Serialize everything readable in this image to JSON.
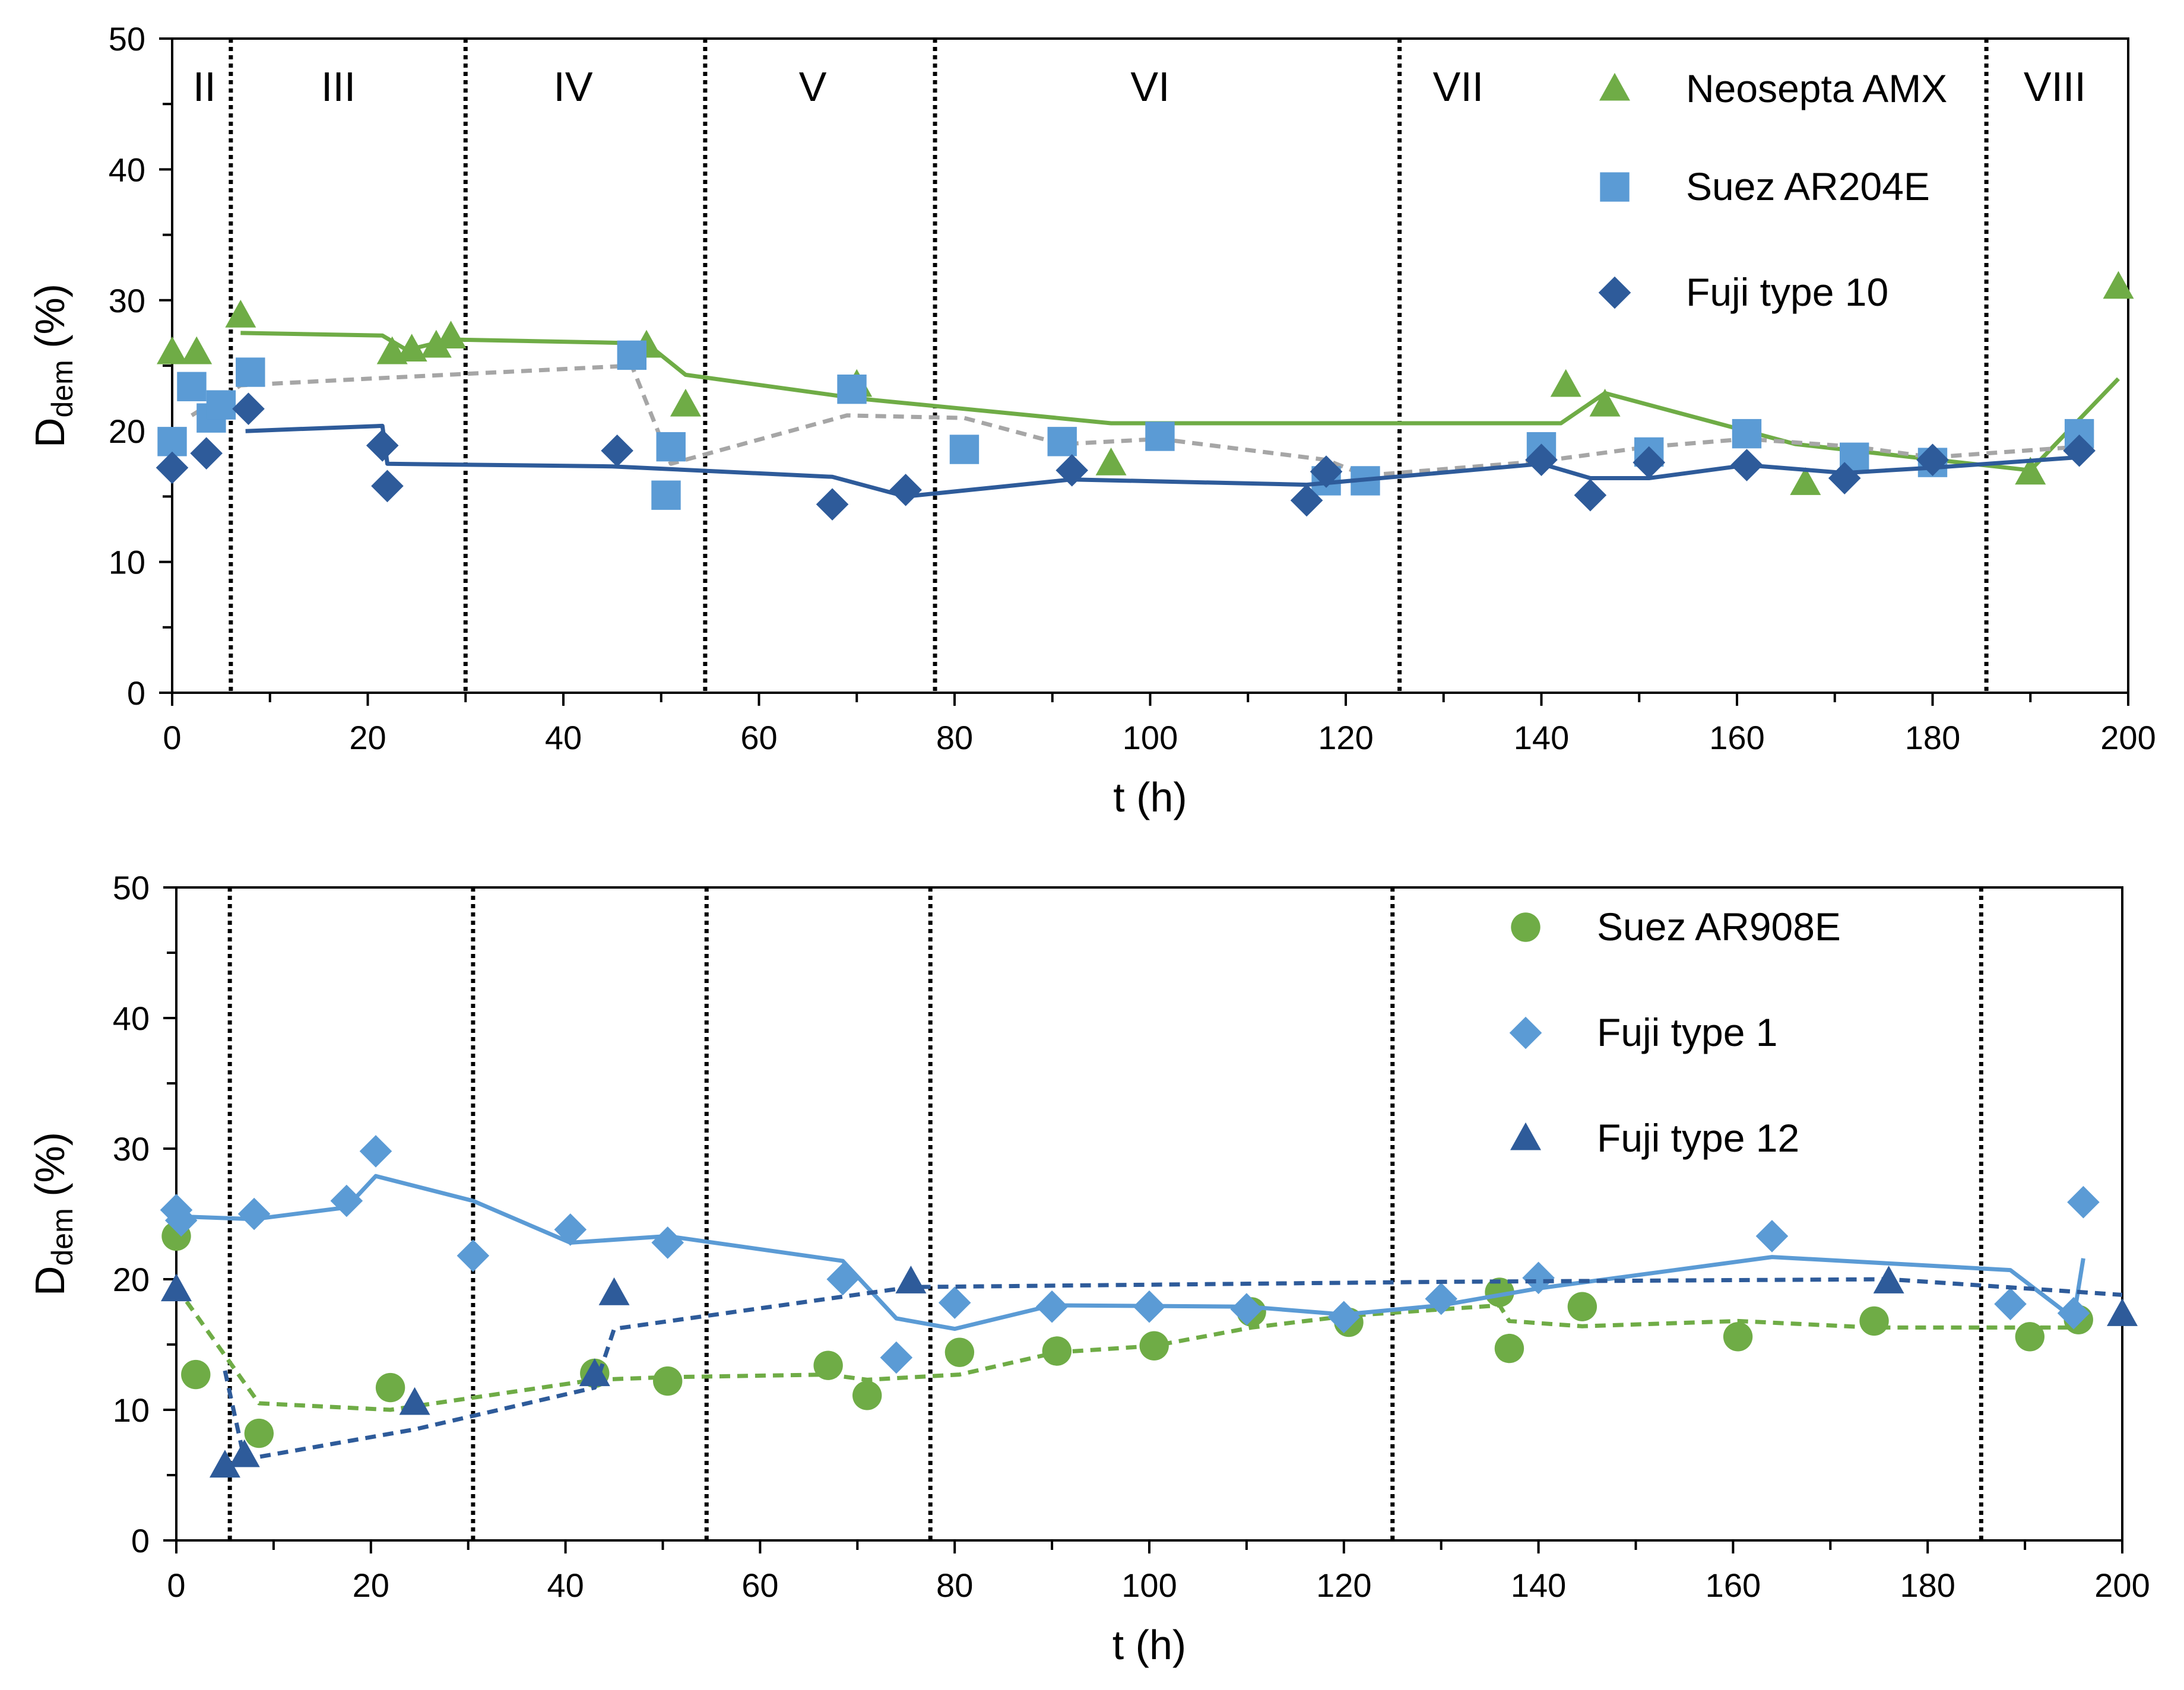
{
  "chart_data": [
    {
      "type": "scatter",
      "xlabel": "t (h)",
      "ylabel_main": "D",
      "ylabel_sub": "dem",
      "ylabel_unit": " (%)",
      "xlim": [
        0,
        200
      ],
      "ylim": [
        0,
        50
      ],
      "xticks": [
        0,
        20,
        40,
        60,
        80,
        100,
        120,
        140,
        160,
        180,
        200
      ],
      "yticks": [
        0,
        10,
        20,
        30,
        40,
        50
      ],
      "period_boundaries": [
        6,
        30,
        54.5,
        78,
        125.5,
        185.5
      ],
      "period_labels": [
        {
          "text": "II",
          "x": 3.3
        },
        {
          "text": "III",
          "x": 17
        },
        {
          "text": "IV",
          "x": 41
        },
        {
          "text": "V",
          "x": 65.5
        },
        {
          "text": "VI",
          "x": 100
        },
        {
          "text": "VII",
          "x": 131.5
        },
        {
          "text": "VIII",
          "x": 192.5
        }
      ],
      "series": [
        {
          "name": "Neosepta AMX",
          "marker": "triangle",
          "color": "#6fac46",
          "line_style": "solid",
          "points": [
            [
              0,
              26
            ],
            [
              2.5,
              26
            ],
            [
              7,
              28.8
            ],
            [
              22.5,
              26
            ],
            [
              24.5,
              26.2
            ],
            [
              27,
              26.5
            ],
            [
              28.5,
              27.2
            ],
            [
              48.5,
              26.5
            ],
            [
              52.5,
              22
            ],
            [
              70,
              23.5
            ],
            [
              96,
              17.5
            ],
            [
              142.5,
              23.5
            ],
            [
              146.5,
              22
            ],
            [
              167,
              16
            ],
            [
              190,
              16.8
            ],
            [
              199,
              31
            ]
          ],
          "fit": [
            [
              7,
              27.5
            ],
            [
              21.5,
              27.3
            ],
            [
              24,
              26.2
            ],
            [
              28.5,
              27
            ],
            [
              48.5,
              26.7
            ],
            [
              52.5,
              24.3
            ],
            [
              70,
              22.5
            ],
            [
              96,
              20.6
            ],
            [
              142,
              20.6
            ],
            [
              146.5,
              22.9
            ],
            [
              166,
              19
            ],
            [
              190,
              17
            ],
            [
              199,
              24
            ]
          ]
        },
        {
          "name": "Suez AR204E",
          "marker": "square",
          "color": "#5b9bd5",
          "line_style": "dashed",
          "points": [
            [
              0,
              19.2
            ],
            [
              2,
              23.4
            ],
            [
              4,
              21
            ],
            [
              5,
              22
            ],
            [
              8,
              24.5
            ],
            [
              47,
              25.8
            ],
            [
              51,
              18.8
            ],
            [
              50.5,
              15.1
            ],
            [
              69.5,
              23.2
            ],
            [
              81,
              18.6
            ],
            [
              91,
              19.2
            ],
            [
              101,
              19.6
            ],
            [
              118,
              16.2
            ],
            [
              122,
              16.2
            ],
            [
              140,
              18.8
            ],
            [
              151,
              18.4
            ],
            [
              161,
              19.8
            ],
            [
              172,
              18
            ],
            [
              180,
              17.6
            ],
            [
              195,
              19.8
            ]
          ],
          "fit": [
            [
              2,
              21.2
            ],
            [
              7,
              23.5
            ],
            [
              20,
              24
            ],
            [
              47,
              25
            ],
            [
              51,
              17.5
            ],
            [
              69,
              21.2
            ],
            [
              81,
              21
            ],
            [
              91,
              19
            ],
            [
              101,
              19.4
            ],
            [
              118,
              17.8
            ],
            [
              122,
              16.6
            ],
            [
              140,
              17.7
            ],
            [
              151,
              18.8
            ],
            [
              161,
              19.4
            ],
            [
              172,
              18.8
            ],
            [
              180,
              18
            ],
            [
              195,
              18.8
            ]
          ]
        },
        {
          "name": "Fuji type 10",
          "marker": "diamond",
          "color": "#2e5b9a",
          "line_style": "solid",
          "points": [
            [
              0,
              17.2
            ],
            [
              3.5,
              18.3
            ],
            [
              7.8,
              21.7
            ],
            [
              21.5,
              18.9
            ],
            [
              22,
              15.8
            ],
            [
              45.5,
              18.5
            ],
            [
              67.5,
              14.4
            ],
            [
              75,
              15.5
            ],
            [
              92,
              17
            ],
            [
              116,
              14.7
            ],
            [
              118,
              16.9
            ],
            [
              140,
              17.8
            ],
            [
              145,
              15.1
            ],
            [
              151,
              17.6
            ],
            [
              161,
              17.4
            ],
            [
              171,
              16.4
            ],
            [
              180,
              17.8
            ],
            [
              195,
              18.5
            ]
          ],
          "fit": [
            [
              7.5,
              20
            ],
            [
              21.5,
              20.4
            ],
            [
              22,
              17.5
            ],
            [
              45,
              17.3
            ],
            [
              67.5,
              16.5
            ],
            [
              75,
              15
            ],
            [
              92,
              16.3
            ],
            [
              116,
              15.9
            ],
            [
              140,
              17.5
            ],
            [
              145,
              16.4
            ],
            [
              151,
              16.4
            ],
            [
              161,
              17.4
            ],
            [
              171,
              16.8
            ],
            [
              180,
              17.2
            ],
            [
              195,
              18
            ]
          ]
        }
      ]
    },
    {
      "type": "scatter",
      "xlabel": "t (h)",
      "ylabel_main": "D",
      "ylabel_sub": "dem",
      "ylabel_unit": " (%)",
      "xlim": [
        0,
        200
      ],
      "ylim": [
        0,
        50
      ],
      "xticks": [
        0,
        20,
        40,
        60,
        80,
        100,
        120,
        140,
        160,
        180,
        200
      ],
      "yticks": [
        0,
        10,
        20,
        30,
        40,
        50
      ],
      "period_boundaries": [
        5.5,
        30.5,
        54.5,
        77.5,
        125,
        185.5
      ],
      "series": [
        {
          "name": "Suez AR908E",
          "marker": "circle",
          "color": "#6fac46",
          "line_style": "dashed",
          "points": [
            [
              0,
              23.3
            ],
            [
              2,
              12.7
            ],
            [
              8.5,
              8.2
            ],
            [
              22,
              11.7
            ],
            [
              43,
              12.8
            ],
            [
              50.5,
              12.2
            ],
            [
              67,
              13.4
            ],
            [
              71,
              11.1
            ],
            [
              80.5,
              14.4
            ],
            [
              90.5,
              14.5
            ],
            [
              100.5,
              14.9
            ],
            [
              110.5,
              17.5
            ],
            [
              120.5,
              16.7
            ],
            [
              136,
              19
            ],
            [
              137,
              14.7
            ],
            [
              144.5,
              17.9
            ],
            [
              160.5,
              15.6
            ],
            [
              174.5,
              16.8
            ],
            [
              190.5,
              15.6
            ],
            [
              195.5,
              16.9
            ]
          ],
          "fit": [
            [
              0,
              19.4
            ],
            [
              8.5,
              10.5
            ],
            [
              22,
              10
            ],
            [
              43,
              12.3
            ],
            [
              50.5,
              12.5
            ],
            [
              67,
              12.7
            ],
            [
              71,
              12.3
            ],
            [
              80.5,
              12.7
            ],
            [
              90.5,
              14.4
            ],
            [
              100.5,
              14.9
            ],
            [
              110.5,
              16.3
            ],
            [
              120.5,
              17.2
            ],
            [
              136,
              18
            ],
            [
              137,
              16.8
            ],
            [
              144.5,
              16.4
            ],
            [
              160.5,
              16.8
            ],
            [
              174.5,
              16.3
            ],
            [
              195.5,
              16.3
            ]
          ]
        },
        {
          "name": "Fuji type 1",
          "marker": "diamond",
          "color": "#5b9bd5",
          "line_style": "solid",
          "points": [
            [
              0,
              25.3
            ],
            [
              0.5,
              24.5
            ],
            [
              8,
              25
            ],
            [
              17.5,
              26
            ],
            [
              20.5,
              29.8
            ],
            [
              30.5,
              21.8
            ],
            [
              40.5,
              23.8
            ],
            [
              50.5,
              22.8
            ],
            [
              68.5,
              20
            ],
            [
              74,
              14
            ],
            [
              80,
              18.2
            ],
            [
              90,
              17.9
            ],
            [
              100,
              17.9
            ],
            [
              110,
              17.7
            ],
            [
              120,
              17.1
            ],
            [
              130,
              18.5
            ],
            [
              140,
              20.1
            ],
            [
              164,
              23.3
            ],
            [
              188.5,
              18.1
            ],
            [
              195,
              17.4
            ],
            [
              196,
              25.9
            ]
          ],
          "fit": [
            [
              0.5,
              24.8
            ],
            [
              8,
              24.6
            ],
            [
              17.5,
              25.5
            ],
            [
              20.5,
              27.9
            ],
            [
              30.5,
              26
            ],
            [
              40.5,
              22.8
            ],
            [
              50.5,
              23.3
            ],
            [
              68.5,
              21.4
            ],
            [
              74,
              17
            ],
            [
              80,
              16.2
            ],
            [
              90,
              18
            ],
            [
              110,
              17.9
            ],
            [
              120,
              17.3
            ],
            [
              130,
              18
            ],
            [
              140,
              19.3
            ],
            [
              164,
              21.7
            ],
            [
              188.5,
              20.7
            ],
            [
              195,
              17
            ],
            [
              196,
              21.6
            ]
          ]
        },
        {
          "name": "Fuji type 12",
          "marker": "triangle",
          "color": "#2e5b9a",
          "line_style": "dashed",
          "points": [
            [
              0,
              19.2
            ],
            [
              5,
              5.7
            ],
            [
              7,
              6.5
            ],
            [
              24.5,
              10.5
            ],
            [
              43,
              12.7
            ],
            [
              45,
              18.9
            ],
            [
              75.5,
              19.8
            ],
            [
              176,
              19.8
            ],
            [
              200,
              17.3
            ]
          ],
          "fit": [
            [
              5,
              13
            ],
            [
              7,
              6.2
            ],
            [
              24.5,
              8.5
            ],
            [
              43,
              11.7
            ],
            [
              45,
              16.2
            ],
            [
              75.5,
              19.4
            ],
            [
              130,
              19.8
            ],
            [
              176,
              20
            ],
            [
              200,
              18.8
            ]
          ]
        }
      ]
    }
  ]
}
